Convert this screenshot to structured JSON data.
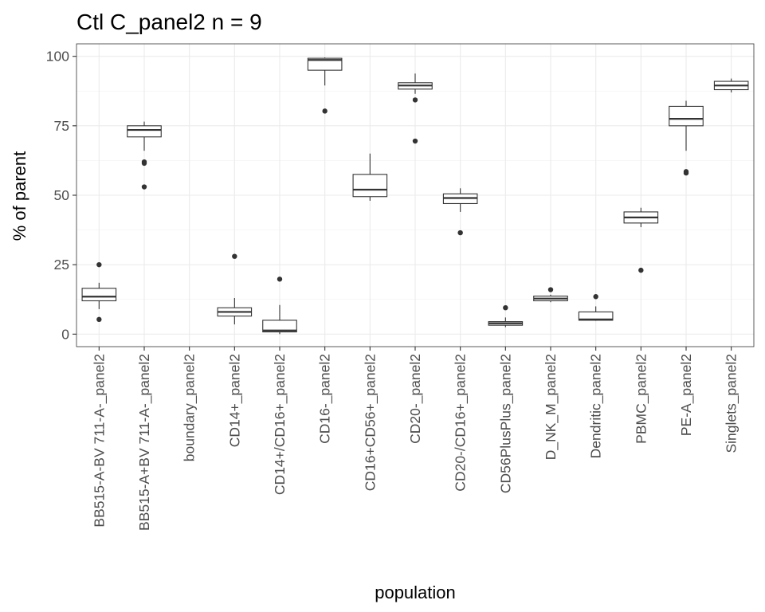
{
  "chart_data": {
    "type": "boxplot",
    "title": "Ctl C_panel2 n = 9",
    "xlabel": "population",
    "ylabel": "% of parent",
    "ylim": [
      -4.5,
      104.5
    ],
    "yticks": [
      0,
      25,
      50,
      75,
      100
    ],
    "grid": true,
    "categories": [
      "BB515-A-BV 711-A-_panel2",
      "BB515-A+BV 711-A-_panel2",
      "boundary_panel2",
      "CD14+_panel2",
      "CD14+/CD16+_panel2",
      "CD16-_panel2",
      "CD16+CD56+_panel2",
      "CD20-_panel2",
      "CD20-/CD16+_panel2",
      "CD56PlusPlus_panel2",
      "D_NK_M_panel2",
      "Dendritic_panel2",
      "PBMC_panel2",
      "PE-A_panel2",
      "Singlets_panel2"
    ],
    "boxes": [
      {
        "lower": 9,
        "q1": 12,
        "median": 13.5,
        "q3": 16.5,
        "upper": 18.5,
        "outliers": [
          25,
          5.3
        ]
      },
      {
        "lower": 66,
        "q1": 71,
        "median": 73.5,
        "q3": 75,
        "upper": 76.5,
        "outliers": [
          62,
          61.5,
          53
        ]
      },
      null,
      {
        "lower": 3.5,
        "q1": 6.5,
        "median": 8,
        "q3": 9.5,
        "upper": 13,
        "outliers": [
          28
        ]
      },
      {
        "lower": 0,
        "q1": 0.8,
        "median": 1.3,
        "q3": 5,
        "upper": 10.5,
        "outliers": [
          19.8
        ]
      },
      {
        "lower": 89.5,
        "q1": 95,
        "median": 98.7,
        "q3": 99.3,
        "upper": 99.6,
        "outliers": [
          80.3
        ]
      },
      {
        "lower": 48,
        "q1": 49.5,
        "median": 52,
        "q3": 57.5,
        "upper": 65,
        "outliers": []
      },
      {
        "lower": 86.5,
        "q1": 88.2,
        "median": 89.5,
        "q3": 90.5,
        "upper": 93.8,
        "outliers": [
          84.3,
          69.5
        ]
      },
      {
        "lower": 44,
        "q1": 47,
        "median": 49,
        "q3": 50.5,
        "upper": 52.5,
        "outliers": [
          36.5
        ]
      },
      {
        "lower": 2.5,
        "q1": 3.2,
        "median": 3.9,
        "q3": 4.5,
        "upper": 6,
        "outliers": [
          9.5
        ]
      },
      {
        "lower": 11.5,
        "q1": 12,
        "median": 12.8,
        "q3": 13.7,
        "upper": 14.2,
        "outliers": [
          16
        ]
      },
      {
        "lower": 4.8,
        "q1": 5,
        "median": 5.3,
        "q3": 8,
        "upper": 10,
        "outliers": [
          13.5
        ]
      },
      {
        "lower": 38.5,
        "q1": 40,
        "median": 42,
        "q3": 44,
        "upper": 45.5,
        "outliers": [
          23
        ]
      },
      {
        "lower": 66,
        "q1": 75,
        "median": 77.5,
        "q3": 82,
        "upper": 84,
        "outliers": [
          58.5,
          58
        ]
      },
      {
        "lower": 87,
        "q1": 88,
        "median": 89.5,
        "q3": 91,
        "upper": 92,
        "outliers": []
      }
    ]
  }
}
